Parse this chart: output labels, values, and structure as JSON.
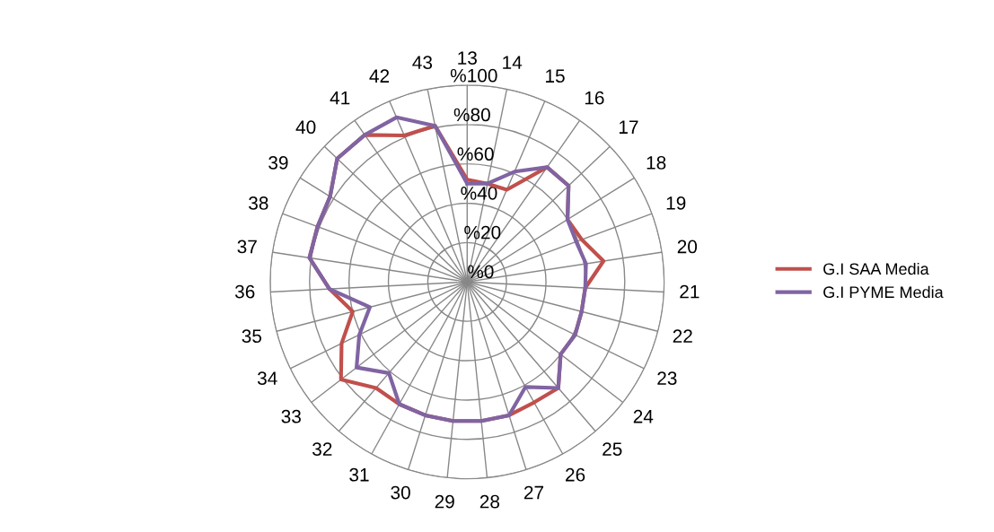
{
  "chart_data": {
    "type": "radar",
    "categories": [
      "13",
      "14",
      "15",
      "16",
      "17",
      "18",
      "19",
      "20",
      "21",
      "22",
      "23",
      "24",
      "25",
      "26",
      "27",
      "28",
      "29",
      "30",
      "31",
      "32",
      "33",
      "34",
      "35",
      "36",
      "37",
      "38",
      "39",
      "40",
      "41",
      "42",
      "43"
    ],
    "series": [
      {
        "name": "G.I SAA Media",
        "color": "#c0504d",
        "values": [
          52,
          51,
          51,
          71,
          71,
          60,
          62,
          70,
          60,
          60,
          61,
          60,
          71,
          70,
          71,
          71,
          71,
          71,
          71,
          71,
          81,
          71,
          60,
          70,
          81,
          81,
          82,
          91,
          91,
          81,
          81
        ]
      },
      {
        "name": "G.I PYME Media",
        "color": "#8064a2",
        "values": [
          50,
          51,
          61,
          71,
          71,
          60,
          59,
          61,
          60,
          60,
          61,
          60,
          71,
          61,
          71,
          71,
          71,
          71,
          71,
          61,
          71,
          61,
          51,
          70,
          81,
          81,
          82,
          91,
          91,
          91,
          81
        ]
      }
    ],
    "ylim": [
      0,
      100
    ],
    "yticks": [
      {
        "value": 0,
        "label": "%0"
      },
      {
        "value": 20,
        "label": "%20"
      },
      {
        "value": 40,
        "label": "%40"
      },
      {
        "value": 60,
        "label": "%60"
      },
      {
        "value": 80,
        "label": "%80"
      },
      {
        "value": 100,
        "label": "%100"
      }
    ],
    "grid": true,
    "legend": "right",
    "marker": "none",
    "line_style": "solid"
  }
}
